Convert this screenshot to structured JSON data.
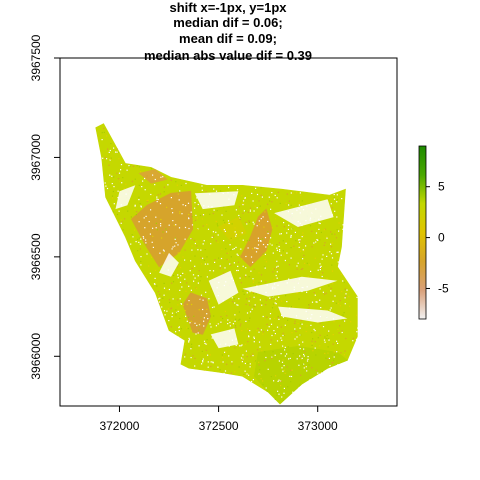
{
  "chart_data": {
    "type": "heatmap",
    "title_lines": [
      "shift x=-1px, y=1px",
      "median dif = 0.06;",
      "mean dif = 0.09;",
      "median abs value dif = 0.39"
    ],
    "xlabel": "",
    "ylabel": "",
    "xlim": [
      371700,
      373400
    ],
    "ylim": [
      3965750,
      3967500
    ],
    "x_ticks": [
      {
        "value": 372000,
        "label": "372000"
      },
      {
        "value": 372500,
        "label": "372500"
      },
      {
        "value": 373000,
        "label": "373000"
      }
    ],
    "y_ticks": [
      {
        "value": 3966000,
        "label": "3966000"
      },
      {
        "value": 3966500,
        "label": "3966500"
      },
      {
        "value": 3967000,
        "label": "3967000"
      },
      {
        "value": 3967500,
        "label": "3967500"
      }
    ],
    "legend": {
      "position": "right",
      "range": [
        -8,
        9
      ],
      "ticks": [
        {
          "value": 5,
          "label": "5"
        },
        {
          "value": 0,
          "label": "0"
        },
        {
          "value": -5,
          "label": "-5"
        }
      ],
      "colors": [
        "#f2f2f2",
        "#d9a079",
        "#d6a42b",
        "#e0c400",
        "#c2d800",
        "#4aa800",
        "#1e8a00"
      ]
    },
    "grid": false,
    "regions": [
      {
        "name": "main-body",
        "value": 0.2,
        "color": "#c5d800",
        "polygon": [
          [
            371880,
            3967150
          ],
          [
            371920,
            3967170
          ],
          [
            372030,
            3966970
          ],
          [
            372160,
            3966950
          ],
          [
            372260,
            3966900
          ],
          [
            372440,
            3966860
          ],
          [
            372620,
            3966860
          ],
          [
            372820,
            3966840
          ],
          [
            373060,
            3966810
          ],
          [
            373140,
            3966840
          ],
          [
            373120,
            3966550
          ],
          [
            373100,
            3966450
          ],
          [
            373200,
            3966300
          ],
          [
            373200,
            3966100
          ],
          [
            373150,
            3965980
          ],
          [
            373050,
            3965940
          ],
          [
            372920,
            3965860
          ],
          [
            372810,
            3965760
          ],
          [
            372750,
            3965820
          ],
          [
            372620,
            3965900
          ],
          [
            372500,
            3965920
          ],
          [
            372350,
            3965940
          ],
          [
            372310,
            3965960
          ],
          [
            372330,
            3966080
          ],
          [
            372250,
            3966130
          ],
          [
            372180,
            3966320
          ],
          [
            372080,
            3966480
          ],
          [
            372030,
            3966600
          ],
          [
            371930,
            3966800
          ],
          [
            371910,
            3967000
          ]
        ]
      },
      {
        "name": "orange-west-slope",
        "value": -1.4,
        "color": "#d6a42b",
        "polygon": [
          [
            372060,
            3966690
          ],
          [
            372140,
            3966760
          ],
          [
            372260,
            3966820
          ],
          [
            372360,
            3966830
          ],
          [
            372370,
            3966640
          ],
          [
            372300,
            3966520
          ],
          [
            372200,
            3966450
          ],
          [
            372130,
            3966560
          ]
        ]
      },
      {
        "name": "orange-north-patch",
        "value": -1.2,
        "color": "#d9a832",
        "polygon": [
          [
            372100,
            3966920
          ],
          [
            372180,
            3966940
          ],
          [
            372240,
            3966890
          ],
          [
            372160,
            3966870
          ]
        ]
      },
      {
        "name": "orange-central-ridge",
        "value": -1.5,
        "color": "#d8a22a",
        "polygon": [
          [
            372610,
            3966500
          ],
          [
            372660,
            3966600
          ],
          [
            372700,
            3966700
          ],
          [
            372740,
            3966740
          ],
          [
            372770,
            3966640
          ],
          [
            372740,
            3966530
          ],
          [
            372660,
            3966450
          ]
        ]
      },
      {
        "name": "orange-south-west",
        "value": -1.6,
        "color": "#d4a130",
        "polygon": [
          [
            372320,
            3966260
          ],
          [
            372360,
            3966320
          ],
          [
            372440,
            3966290
          ],
          [
            372460,
            3966200
          ],
          [
            372420,
            3966110
          ],
          [
            372370,
            3966120
          ]
        ]
      },
      {
        "name": "green-south-flat",
        "value": 0.5,
        "color": "#b8d400",
        "polygon": [
          [
            372700,
            3966020
          ],
          [
            372900,
            3966050
          ],
          [
            373100,
            3966020
          ],
          [
            373150,
            3965980
          ],
          [
            373050,
            3965940
          ],
          [
            372920,
            3965860
          ],
          [
            372810,
            3965760
          ],
          [
            372750,
            3965820
          ],
          [
            372680,
            3965900
          ]
        ]
      },
      {
        "name": "yellow-north-strip",
        "value": 0.0,
        "color": "#d2d200",
        "polygon": [
          [
            372500,
            3966650
          ],
          [
            372600,
            3966700
          ],
          [
            372640,
            3966620
          ],
          [
            372560,
            3966580
          ]
        ]
      }
    ],
    "gaps": [
      {
        "name": "gap-west-upper",
        "polygon": [
          [
            372000,
            3966830
          ],
          [
            372080,
            3966860
          ],
          [
            372040,
            3966760
          ],
          [
            371980,
            3966740
          ]
        ]
      },
      {
        "name": "gap-central-upper",
        "polygon": [
          [
            372380,
            3966820
          ],
          [
            372600,
            3966830
          ],
          [
            372580,
            3966760
          ],
          [
            372420,
            3966740
          ]
        ]
      },
      {
        "name": "gap-west-middle",
        "polygon": [
          [
            372250,
            3966520
          ],
          [
            372300,
            3966470
          ],
          [
            372260,
            3966400
          ],
          [
            372200,
            3966420
          ]
        ]
      },
      {
        "name": "gap-east-upper",
        "polygon": [
          [
            372780,
            3966720
          ],
          [
            373050,
            3966790
          ],
          [
            373080,
            3966700
          ],
          [
            372900,
            3966650
          ]
        ]
      },
      {
        "name": "gap-center",
        "polygon": [
          [
            372450,
            3966380
          ],
          [
            372560,
            3966430
          ],
          [
            372600,
            3966320
          ],
          [
            372500,
            3966260
          ]
        ]
      },
      {
        "name": "gap-east-band",
        "polygon": [
          [
            372620,
            3966340
          ],
          [
            372920,
            3966400
          ],
          [
            373100,
            3966380
          ],
          [
            372950,
            3966330
          ],
          [
            372750,
            3966300
          ]
        ]
      },
      {
        "name": "gap-east-lower",
        "polygon": [
          [
            372800,
            3966250
          ],
          [
            373050,
            3966230
          ],
          [
            373150,
            3966190
          ],
          [
            373000,
            3966170
          ],
          [
            372820,
            3966200
          ]
        ]
      },
      {
        "name": "gap-south-west",
        "polygon": [
          [
            372200,
            3966080
          ],
          [
            372300,
            3966100
          ],
          [
            372280,
            3966030
          ],
          [
            372190,
            3966020
          ]
        ]
      },
      {
        "name": "gap-south-mid",
        "polygon": [
          [
            372460,
            3966110
          ],
          [
            372580,
            3966140
          ],
          [
            372600,
            3966060
          ],
          [
            372500,
            3966040
          ]
        ]
      }
    ]
  }
}
